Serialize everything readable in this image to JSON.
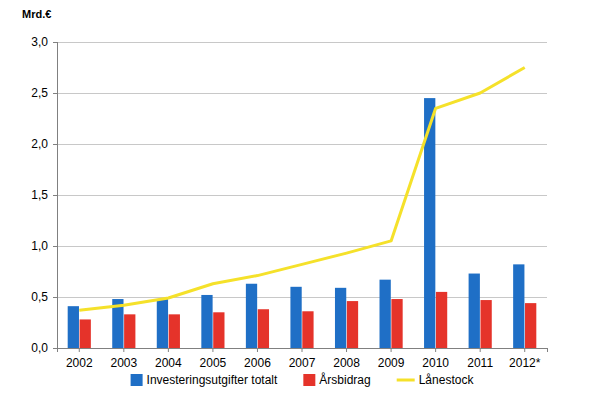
{
  "chart_data": {
    "type": "bar",
    "y_label": "Mrd.€",
    "categories": [
      "2002",
      "2003",
      "2004",
      "2005",
      "2006",
      "2007",
      "2008",
      "2009",
      "2010",
      "2011",
      "2012*"
    ],
    "series": [
      {
        "name": "Investeringsutgifter totalt",
        "type": "bar",
        "color": "#1f6fc6",
        "values": [
          0.41,
          0.48,
          0.48,
          0.52,
          0.63,
          0.6,
          0.59,
          0.67,
          2.45,
          0.73,
          0.82
        ]
      },
      {
        "name": "Årsbidrag",
        "type": "bar",
        "color": "#e5332a",
        "values": [
          0.28,
          0.33,
          0.33,
          0.35,
          0.38,
          0.36,
          0.46,
          0.48,
          0.55,
          0.47,
          0.44
        ]
      },
      {
        "name": "Lånestock",
        "type": "line",
        "color": "#f5e12a",
        "values": [
          0.37,
          0.42,
          0.49,
          0.63,
          0.71,
          0.82,
          0.93,
          1.05,
          2.35,
          2.5,
          2.75
        ]
      }
    ],
    "ylim": [
      0,
      3
    ],
    "yticks": [
      {
        "value": 0,
        "label": "0,0"
      },
      {
        "value": 0.5,
        "label": "0,5"
      },
      {
        "value": 1,
        "label": "1,0"
      },
      {
        "value": 1.5,
        "label": "1,5"
      },
      {
        "value": 2,
        "label": "2,0"
      },
      {
        "value": 2.5,
        "label": "2,5"
      },
      {
        "value": 3,
        "label": "3,0"
      }
    ],
    "grid": true,
    "legend": "bottom"
  }
}
